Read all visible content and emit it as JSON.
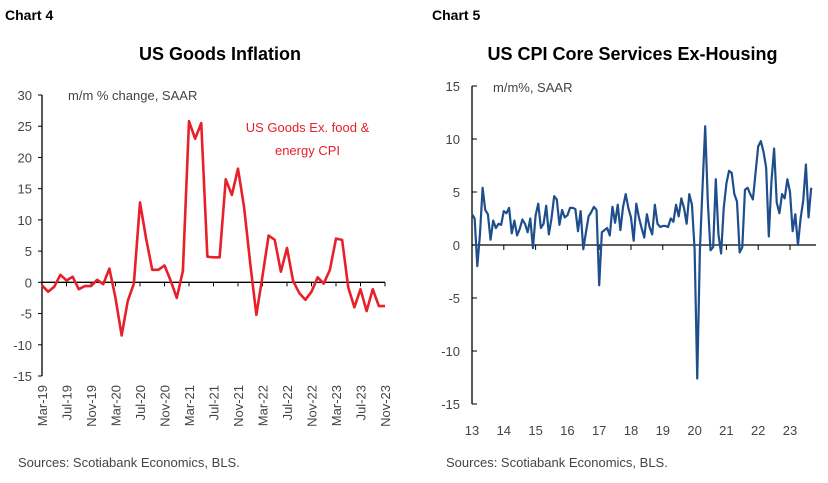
{
  "chart_data": [
    {
      "type": "line",
      "label": "Chart 4",
      "title": "US Goods Inflation",
      "ylabel": "m/m % change, SAAR",
      "source": "Sources: Scotiabank Economics, BLS.",
      "ylim": [
        -15,
        30
      ],
      "yticks": [
        "30",
        "25",
        "20",
        "15",
        "10",
        "5",
        "0",
        "-5",
        "-10",
        "-15"
      ],
      "xtick_labels": [
        "Mar-19",
        "Jul-19",
        "Nov-19",
        "Mar-20",
        "Jul-20",
        "Nov-20",
        "Mar-21",
        "Jul-21",
        "Nov-21",
        "Mar-22",
        "Jul-22",
        "Nov-22",
        "Mar-23",
        "Jul-23",
        "Nov-23"
      ],
      "grid": false,
      "series": [
        {
          "name": "US Goods Ex. food & energy CPI",
          "name_lines": [
            "US Goods Ex. food &",
            "energy CPI"
          ],
          "color": "#e8202a",
          "x_start": "Mar-19",
          "x_end": "Nov-23",
          "values": [
            -0.5,
            -1.5,
            -0.7,
            1.2,
            0.3,
            0.9,
            -1.1,
            -0.6,
            -0.6,
            0.4,
            -0.3,
            2.2,
            -2.5,
            -8.5,
            -3.0,
            -0.2,
            12.8,
            7.0,
            2.0,
            2.0,
            2.7,
            0.3,
            -2.5,
            1.8,
            25.8,
            23.0,
            25.5,
            4.1,
            4.0,
            4.0,
            16.5,
            14.0,
            18.2,
            12.0,
            3.0,
            -5.2,
            1.0,
            7.5,
            6.8,
            1.7,
            5.5,
            0.2,
            -1.7,
            -2.8,
            -1.5,
            0.8,
            -0.2,
            2.0,
            7.0,
            6.8,
            -0.8,
            -4.0,
            -1.1,
            -4.6,
            -1.1,
            -3.8,
            -3.8
          ]
        }
      ]
    },
    {
      "type": "line",
      "label": "Chart 5",
      "title": "US CPI Core Services Ex-Housing",
      "ylabel": "m/m%, SAAR",
      "source": "Sources: Scotiabank Economics, BLS.",
      "ylim": [
        -15,
        15
      ],
      "yticks": [
        "15",
        "10",
        "5",
        "0",
        "-5",
        "-10",
        "-15"
      ],
      "xtick_labels": [
        "13",
        "14",
        "15",
        "16",
        "17",
        "18",
        "19",
        "20",
        "21",
        "22",
        "23"
      ],
      "grid": false,
      "series": [
        {
          "color": "#1f4e8c",
          "values_by_year": {
            "2013": [
              2.9,
              2.5,
              -2.0,
              1.0,
              5.4,
              3.3,
              2.9,
              0.5,
              2.3,
              1.6,
              2.0,
              1.9
            ],
            "2014": [
              3.2,
              3.0,
              3.5,
              1.1,
              2.3,
              0.9,
              1.5,
              2.4,
              2.0,
              1.2,
              2.5,
              -0.3
            ],
            "2015": [
              2.8,
              3.9,
              1.6,
              2.0,
              3.7,
              1.0,
              2.5,
              4.6,
              4.3,
              1.9,
              3.3,
              2.6
            ],
            "2016": [
              2.8,
              3.5,
              3.5,
              3.4,
              1.3,
              3.2,
              -0.4,
              1.2,
              2.7,
              3.1,
              3.6,
              3.3
            ],
            "2017": [
              -3.8,
              1.2,
              1.4,
              1.6,
              0.9,
              3.6,
              2.1,
              3.8,
              1.4,
              3.6,
              4.8,
              3.5
            ],
            "2018": [
              2.6,
              0.4,
              3.9,
              2.6,
              1.6,
              0.7,
              2.9,
              1.7,
              1.0,
              3.8,
              2.0,
              1.7
            ],
            "2019": [
              1.8,
              1.8,
              1.7,
              2.5,
              2.2,
              3.8,
              2.7,
              4.4,
              3.5,
              2.0,
              4.8,
              3.8
            ],
            "2020": [
              -0.4,
              -12.6,
              -0.5,
              5.5,
              11.2,
              4.0,
              -0.5,
              -0.2,
              6.2,
              1.0,
              -0.8,
              3.5
            ],
            "2021": [
              5.8,
              7.0,
              6.8,
              4.8,
              4.1,
              -0.7,
              -0.2,
              5.2,
              5.4,
              4.8,
              4.3,
              6.8
            ],
            "2022": [
              9.3,
              9.8,
              8.8,
              7.3,
              0.8,
              6.0,
              9.1,
              4.0,
              3.0,
              4.8,
              4.4,
              6.2
            ],
            "2023": [
              5.0,
              1.3,
              2.9,
              0.0,
              2.5,
              4.2,
              7.6,
              2.6,
              5.4
            ]
          }
        }
      ]
    }
  ]
}
